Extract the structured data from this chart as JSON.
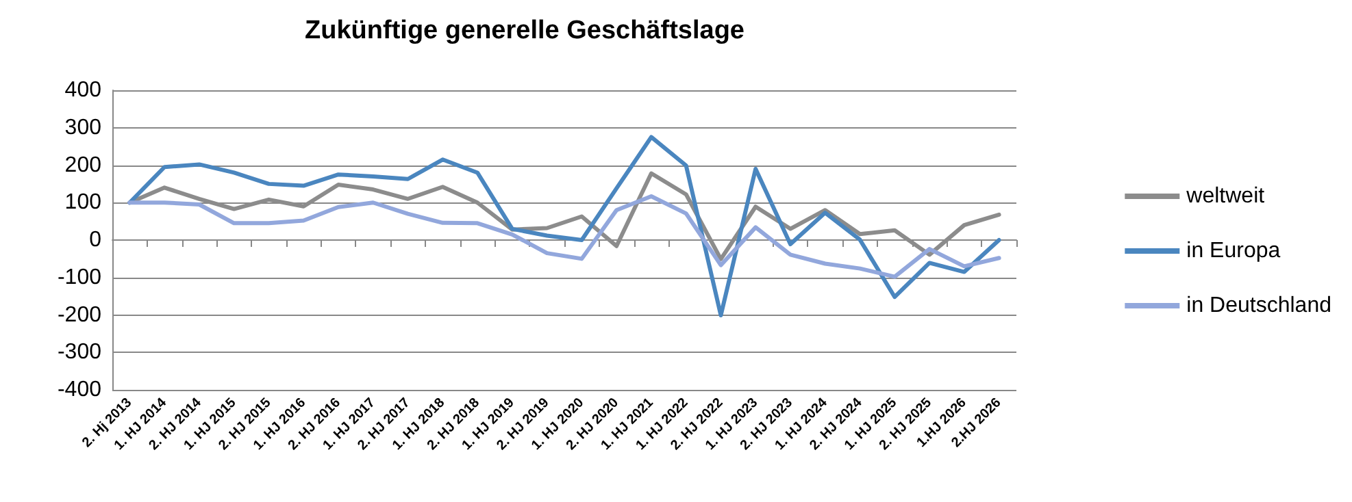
{
  "chart_data": {
    "type": "line",
    "title": "Zukünftige generelle Geschäftslage",
    "categories": [
      "2. Hj 2013",
      "1. HJ 2014",
      "2. HJ 2014",
      "1. HJ 2015",
      "2. HJ 2015",
      "1. HJ 2016",
      "2. HJ 2016",
      "1. HJ 2017",
      "2. HJ 2017",
      "1. HJ 2018",
      "2. HJ 2018",
      "1. HJ 2019",
      "2. HJ 2019",
      "1. HJ 2020",
      "2. HJ 2020",
      "1. HJ 2021",
      "1. HJ 2022",
      "2. HJ 2022",
      "1. HJ 2023",
      "2. HJ 2023",
      "1. HJ 2024",
      "2. HJ 2024",
      "1. HJ 2025",
      "2. HJ 2025",
      "1.HJ 2026",
      "2.HJ 2026"
    ],
    "series": [
      {
        "name": "weltweit",
        "color": "#8c8c8c",
        "values": [
          100,
          140,
          110,
          83,
          108,
          90,
          148,
          135,
          110,
          142,
          100,
          28,
          32,
          63,
          -16,
          178,
          122,
          -51,
          89,
          30,
          80,
          16,
          26,
          -39,
          40,
          68
        ]
      },
      {
        "name": "in Europa",
        "color": "#4a86bf",
        "values": [
          100,
          195,
          202,
          180,
          150,
          145,
          175,
          170,
          163,
          215,
          180,
          30,
          12,
          0,
          138,
          275,
          199,
          -201,
          190,
          -11,
          73,
          1,
          -152,
          -61,
          -85,
          0
        ]
      },
      {
        "name": "in Deutschland",
        "color": "#92a7dc",
        "values": [
          100,
          100,
          95,
          45,
          45,
          52,
          88,
          100,
          70,
          46,
          45,
          15,
          -35,
          -50,
          80,
          117,
          71,
          -67,
          34,
          -39,
          -63,
          -76,
          -98,
          -24,
          -70,
          -48
        ]
      }
    ],
    "ylim": [
      -400,
      400
    ],
    "yticks": [
      -400,
      -300,
      -200,
      -100,
      0,
      100,
      200,
      300,
      400
    ],
    "grid": "y",
    "legend": "right",
    "marker": "none",
    "line_style": "solid"
  }
}
